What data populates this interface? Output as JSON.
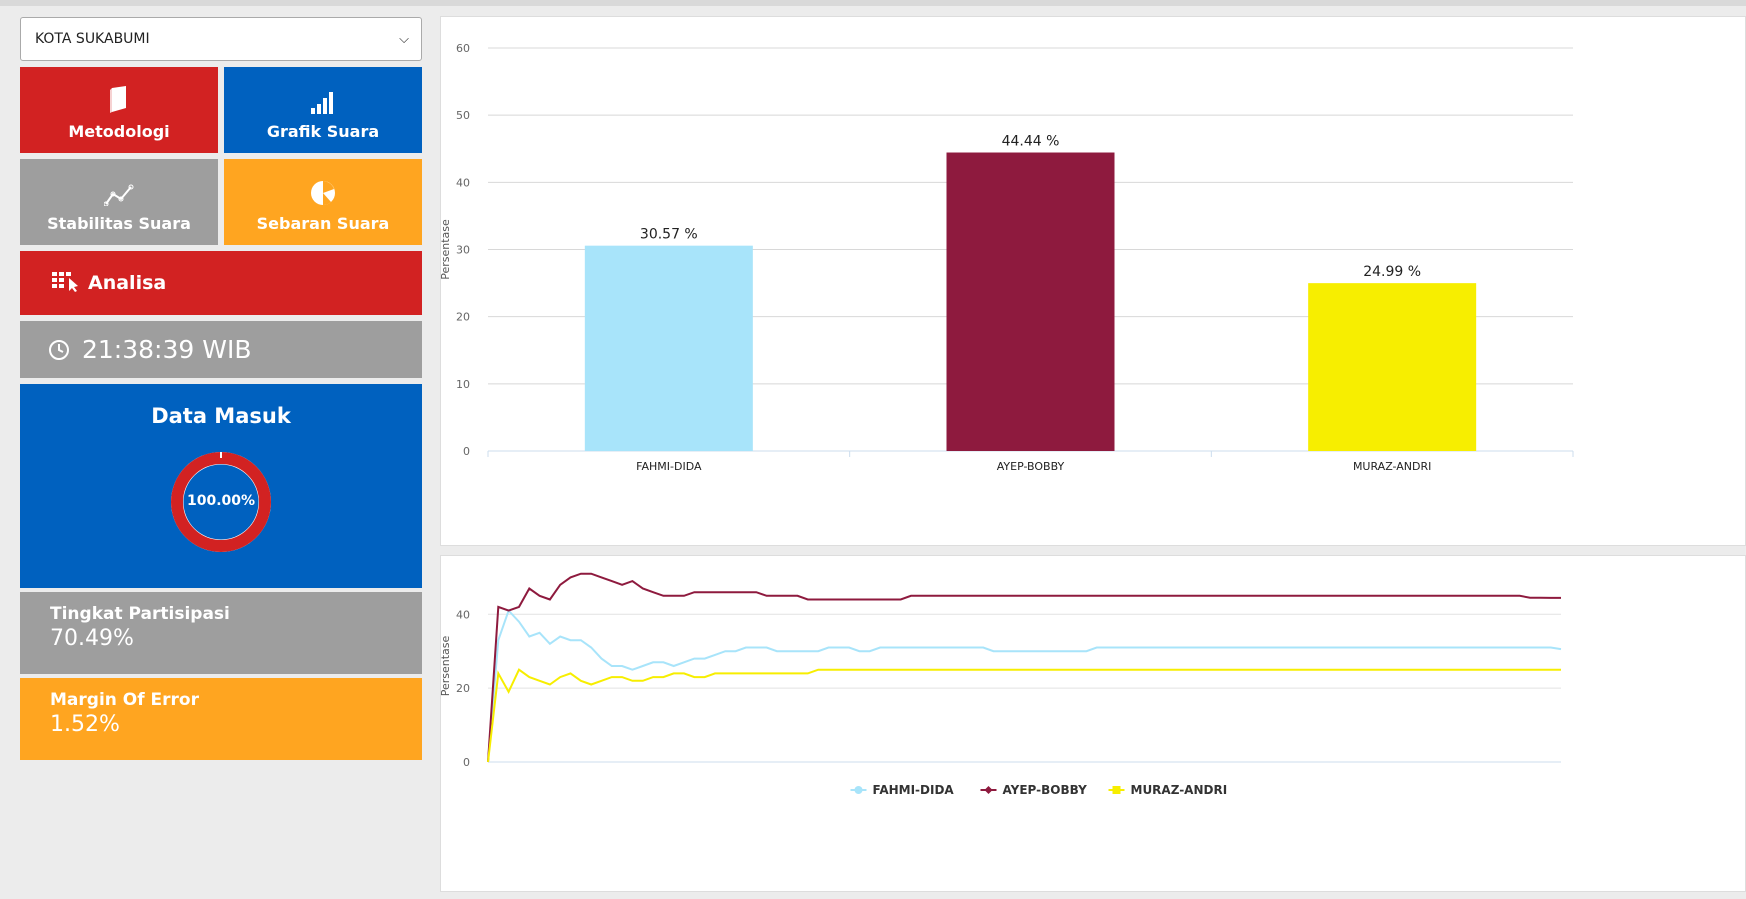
{
  "sidebar": {
    "region_select": "KOTA SUKABUMI",
    "tiles": [
      {
        "label": "Metodologi",
        "icon": "book-icon",
        "color": "#d22222"
      },
      {
        "label": "Grafik Suara",
        "icon": "bar-chart-icon",
        "color": "#0061bf"
      },
      {
        "label": "Stabilitas Suara",
        "icon": "line-chart-icon",
        "color": "#9e9e9e"
      },
      {
        "label": "Sebaran Suara",
        "icon": "pie-chart-icon",
        "color": "#ffa520"
      }
    ],
    "analisa": {
      "label": "Analisa",
      "icon": "table-cursor-icon"
    },
    "clock": {
      "time": "21:38:39 WIB",
      "icon": "clock-icon"
    },
    "data_masuk": {
      "title": "Data Masuk",
      "percent_label": "100.00%",
      "fraction": 1.0
    },
    "participation": {
      "label": "Tingkat Partisipasi",
      "value": "70.49%"
    },
    "margin_error": {
      "label": "Margin Of Error",
      "value": "1.52%"
    }
  },
  "chart_data": [
    {
      "type": "bar",
      "categories": [
        "FAHMI-DIDA",
        "AYEP-BOBBY",
        "MURAZ-ANDRI"
      ],
      "values": [
        30.57,
        44.44,
        24.99
      ],
      "value_labels": [
        "30.57 %",
        "44.44 %",
        "24.99 %"
      ],
      "colors": [
        "#a8e4fa",
        "#8e1a3e",
        "#f7ee00"
      ],
      "ylabel": "Persentase",
      "ylim": [
        0,
        60
      ],
      "yticks": [
        0,
        10,
        20,
        30,
        40,
        50,
        60
      ],
      "grid": true
    },
    {
      "type": "line",
      "ylabel": "Persentase",
      "ylim": [
        0,
        52
      ],
      "yticks": [
        0,
        20,
        40
      ],
      "grid": true,
      "legend_position": "bottom-center",
      "series": [
        {
          "name": "FAHMI-DIDA",
          "color": "#a8e4fa",
          "marker": "circle",
          "values": [
            0,
            33,
            41,
            38,
            34,
            35,
            32,
            34,
            33,
            33,
            31,
            28,
            26,
            26,
            25,
            26,
            27,
            27,
            26,
            27,
            28,
            28,
            29,
            30,
            30,
            31,
            31,
            31,
            30,
            30,
            30,
            30,
            30,
            31,
            31,
            31,
            30,
            30,
            31,
            31,
            31,
            31,
            31,
            31,
            31,
            31,
            31,
            31,
            31,
            30,
            30,
            30,
            30,
            30,
            30,
            30,
            30,
            30,
            30,
            31,
            31,
            31,
            31,
            31,
            31,
            31,
            31,
            31,
            31,
            31,
            31,
            31,
            31,
            31,
            31,
            31,
            31,
            31,
            31,
            31,
            31,
            31,
            31,
            31,
            31,
            31,
            31,
            31,
            31,
            31,
            31,
            31,
            31,
            31,
            31,
            31,
            31,
            31,
            31,
            31,
            31,
            31,
            31,
            31,
            30.57
          ]
        },
        {
          "name": "AYEP-BOBBY",
          "color": "#8e1a3e",
          "marker": "diamond",
          "values": [
            0,
            42,
            41,
            42,
            47,
            45,
            44,
            48,
            50,
            51,
            51,
            50,
            49,
            48,
            49,
            47,
            46,
            45,
            45,
            45,
            46,
            46,
            46,
            46,
            46,
            46,
            46,
            45,
            45,
            45,
            45,
            44,
            44,
            44,
            44,
            44,
            44,
            44,
            44,
            44,
            44,
            45,
            45,
            45,
            45,
            45,
            45,
            45,
            45,
            45,
            45,
            45,
            45,
            45,
            45,
            45,
            45,
            45,
            45,
            45,
            45,
            45,
            45,
            45,
            45,
            45,
            45,
            45,
            45,
            45,
            45,
            45,
            45,
            45,
            45,
            45,
            45,
            45,
            45,
            45,
            45,
            45,
            45,
            45,
            45,
            45,
            45,
            45,
            45,
            45,
            45,
            45,
            45,
            45,
            45,
            45,
            45,
            45,
            45,
            45,
            45,
            44.5,
            44.5,
            44.44,
            44.44
          ]
        },
        {
          "name": "MURAZ-ANDRI",
          "color": "#f7ee00",
          "marker": "square",
          "values": [
            0,
            24,
            19,
            25,
            23,
            22,
            21,
            23,
            24,
            22,
            21,
            22,
            23,
            23,
            22,
            22,
            23,
            23,
            24,
            24,
            23,
            23,
            24,
            24,
            24,
            24,
            24,
            24,
            24,
            24,
            24,
            24,
            25,
            25,
            25,
            25,
            25,
            25,
            25,
            25,
            25,
            25,
            25,
            25,
            25,
            25,
            25,
            25,
            25,
            25,
            25,
            25,
            25,
            25,
            25,
            25,
            25,
            25,
            25,
            25,
            25,
            25,
            25,
            25,
            25,
            25,
            25,
            25,
            25,
            25,
            25,
            25,
            25,
            25,
            25,
            25,
            25,
            25,
            25,
            25,
            25,
            25,
            25,
            25,
            25,
            25,
            25,
            25,
            25,
            25,
            25,
            25,
            25,
            25,
            25,
            25,
            25,
            25,
            25,
            25,
            25,
            25,
            25,
            25,
            24.99
          ]
        }
      ]
    }
  ]
}
